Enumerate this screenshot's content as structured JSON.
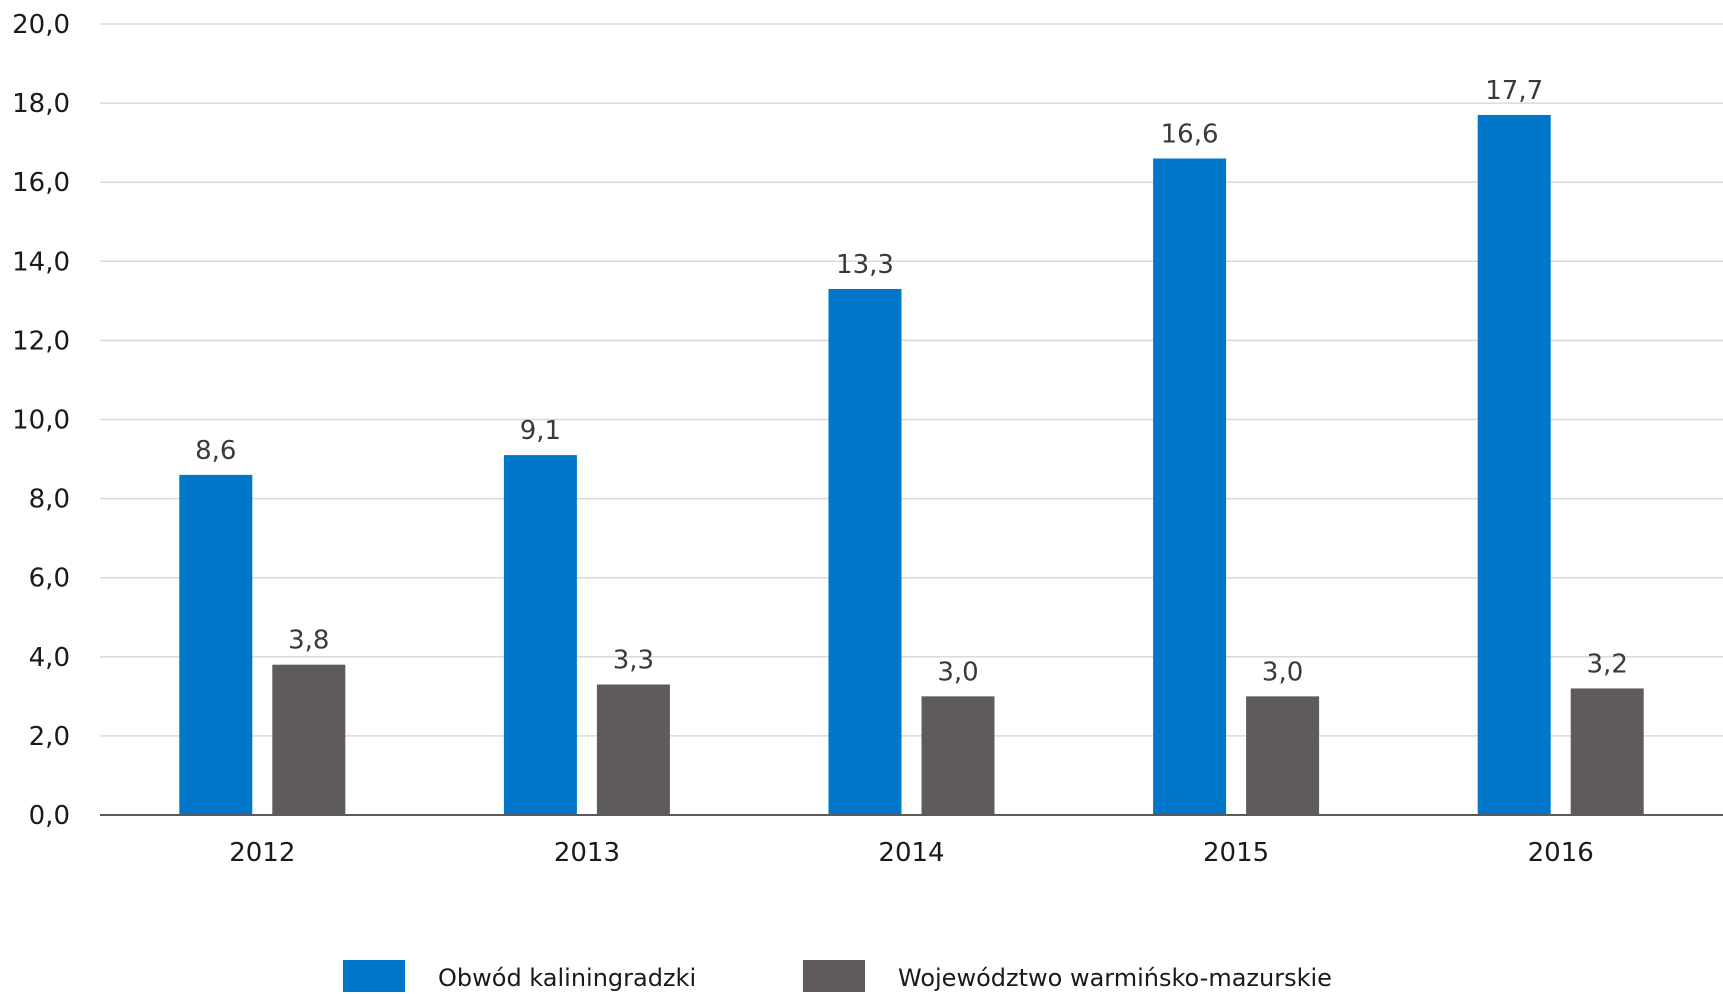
{
  "chart_data": {
    "type": "bar",
    "categories": [
      "2012",
      "2013",
      "2014",
      "2015",
      "2016"
    ],
    "series": [
      {
        "name": "Obwód kaliningradzki",
        "color": "#0077c8",
        "values": [
          8.6,
          9.1,
          13.3,
          16.6,
          17.7
        ],
        "labels": [
          "8,6",
          "9,1",
          "13,3",
          "16,6",
          "17,7"
        ]
      },
      {
        "name": "Województwo warmińsko-mazurskie",
        "color": "#5f5b5b",
        "values": [
          3.8,
          3.3,
          3.0,
          3.0,
          3.2
        ],
        "labels": [
          "3,8",
          "3,3",
          "3,0",
          "3,0",
          "3,2"
        ]
      }
    ],
    "ylim": [
      0,
      20
    ],
    "yticks": [
      0,
      2,
      4,
      6,
      8,
      10,
      12,
      14,
      16,
      18,
      20
    ],
    "ytick_labels": [
      "0,0",
      "2,0",
      "4,0",
      "6,0",
      "8,0",
      "10,0",
      "12,0",
      "14,0",
      "16,0",
      "18,0",
      "20,0"
    ],
    "grid": true,
    "legend_position": "bottom"
  }
}
